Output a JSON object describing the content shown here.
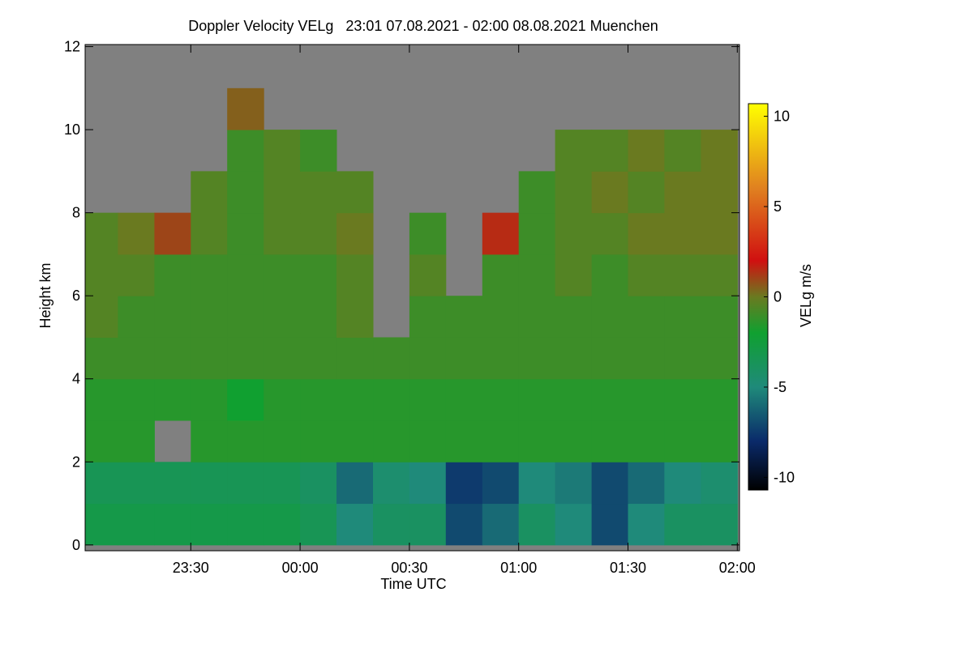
{
  "chart_data": {
    "type": "heatmap",
    "title": "Doppler Velocity VELg   23:01 07.08.2021 - 02:00 08.08.2021 Muenchen",
    "x_label": "Time UTC",
    "y_label": "Height km",
    "colorbar_label": "VELg m/s",
    "xlim": [
      23.0167,
      26.01
    ],
    "ylim": [
      -0.14,
      12.05
    ],
    "xticks": [
      {
        "value": 23.5,
        "label": "23:30"
      },
      {
        "value": 24,
        "label": "00:00"
      },
      {
        "value": 24.5,
        "label": "00:30"
      },
      {
        "value": 25,
        "label": "01:00"
      },
      {
        "value": 25.5,
        "label": "01:30"
      },
      {
        "value": 26,
        "label": "02:00"
      }
    ],
    "yticks": [
      0,
      2,
      4,
      6,
      8,
      10,
      12
    ],
    "x": [
      23.083,
      23.25,
      23.417,
      23.583,
      23.75,
      23.917,
      24.083,
      24.25,
      24.417,
      24.583,
      24.75,
      24.917,
      25.083,
      25.25,
      25.417,
      25.583,
      25.75,
      25.917
    ],
    "y": [
      0.5,
      1.5,
      2.5,
      3.5,
      4.5,
      5.5,
      6.5,
      7.5,
      8.5,
      9.5,
      10.5,
      11.5
    ],
    "values": [
      [
        -3,
        -3,
        -3,
        -3,
        -3,
        -3,
        -3.5,
        -5,
        -4,
        -4,
        -7,
        -6,
        -4,
        -5,
        -7,
        -5,
        -4,
        -4
      ],
      [
        -3.5,
        -3.5,
        -3.5,
        -3.5,
        -3.5,
        -3.5,
        -4,
        -6,
        -4.5,
        -5,
        -7.5,
        -7,
        -5,
        -5.5,
        -7,
        -6,
        -5,
        -4.5
      ],
      [
        -1.5,
        -1.5,
        null,
        -1.5,
        -1.5,
        -1.5,
        -1.5,
        -1.5,
        -1.5,
        -1.5,
        -1.5,
        -1.5,
        -1.5,
        -1.5,
        -1.5,
        -1.5,
        -1.5,
        -1.5
      ],
      [
        -1.5,
        -1.5,
        -1.5,
        -1.5,
        -2,
        -1.5,
        -1.5,
        -1.5,
        -1.5,
        -1.5,
        -1.5,
        -1.5,
        -1.5,
        -1.5,
        -1.5,
        -1.5,
        -1.5,
        -1.5
      ],
      [
        -1,
        -1,
        -1,
        -1,
        -1,
        -1,
        -1,
        -1,
        -1,
        -1,
        -1,
        -1,
        -1,
        -1,
        -1,
        -1,
        -1,
        -1
      ],
      [
        -0.5,
        -1,
        -1,
        -1,
        -1,
        -1,
        -1,
        -0.5,
        null,
        -1,
        -1,
        -1,
        -1,
        -1,
        -1,
        -1,
        -1,
        -1
      ],
      [
        -0.5,
        -0.5,
        -1,
        -1,
        -1,
        -1,
        -1,
        -0.5,
        null,
        -0.5,
        null,
        -1,
        -1,
        -0.5,
        -1,
        -0.5,
        -0.5,
        -0.5
      ],
      [
        -0.5,
        0,
        1,
        -0.5,
        -1,
        -0.5,
        -0.5,
        0,
        null,
        -1,
        null,
        1.5,
        -1,
        -0.5,
        -0.5,
        0,
        0,
        0
      ],
      [
        null,
        null,
        null,
        -0.5,
        -1,
        -0.5,
        -0.5,
        -0.5,
        null,
        null,
        null,
        null,
        -1,
        -0.5,
        0,
        -0.5,
        0,
        0
      ],
      [
        null,
        null,
        null,
        null,
        -1,
        -0.5,
        -1,
        null,
        null,
        null,
        null,
        null,
        null,
        -0.5,
        -0.5,
        0,
        -0.5,
        0
      ],
      [
        null,
        null,
        null,
        null,
        0.5,
        null,
        null,
        null,
        null,
        null,
        null,
        null,
        null,
        null,
        null,
        null,
        null,
        null
      ],
      [
        null,
        null,
        null,
        null,
        null,
        null,
        null,
        null,
        null,
        null,
        null,
        null,
        null,
        null,
        null,
        null,
        null,
        null
      ]
    ],
    "na_color": "#808080",
    "zlim": [
      -10.7,
      10.7
    ],
    "zticks": [
      -10,
      -5,
      0,
      5,
      10
    ],
    "colorscale": [
      [
        -10.7,
        "#000000"
      ],
      [
        -8,
        "#0a2a6a"
      ],
      [
        -5,
        "#1f8a7a"
      ],
      [
        -2,
        "#10a030"
      ],
      [
        0,
        "#6a7a20"
      ],
      [
        2,
        "#d01010"
      ],
      [
        6,
        "#e08020"
      ],
      [
        10.7,
        "#ffff00"
      ]
    ]
  }
}
